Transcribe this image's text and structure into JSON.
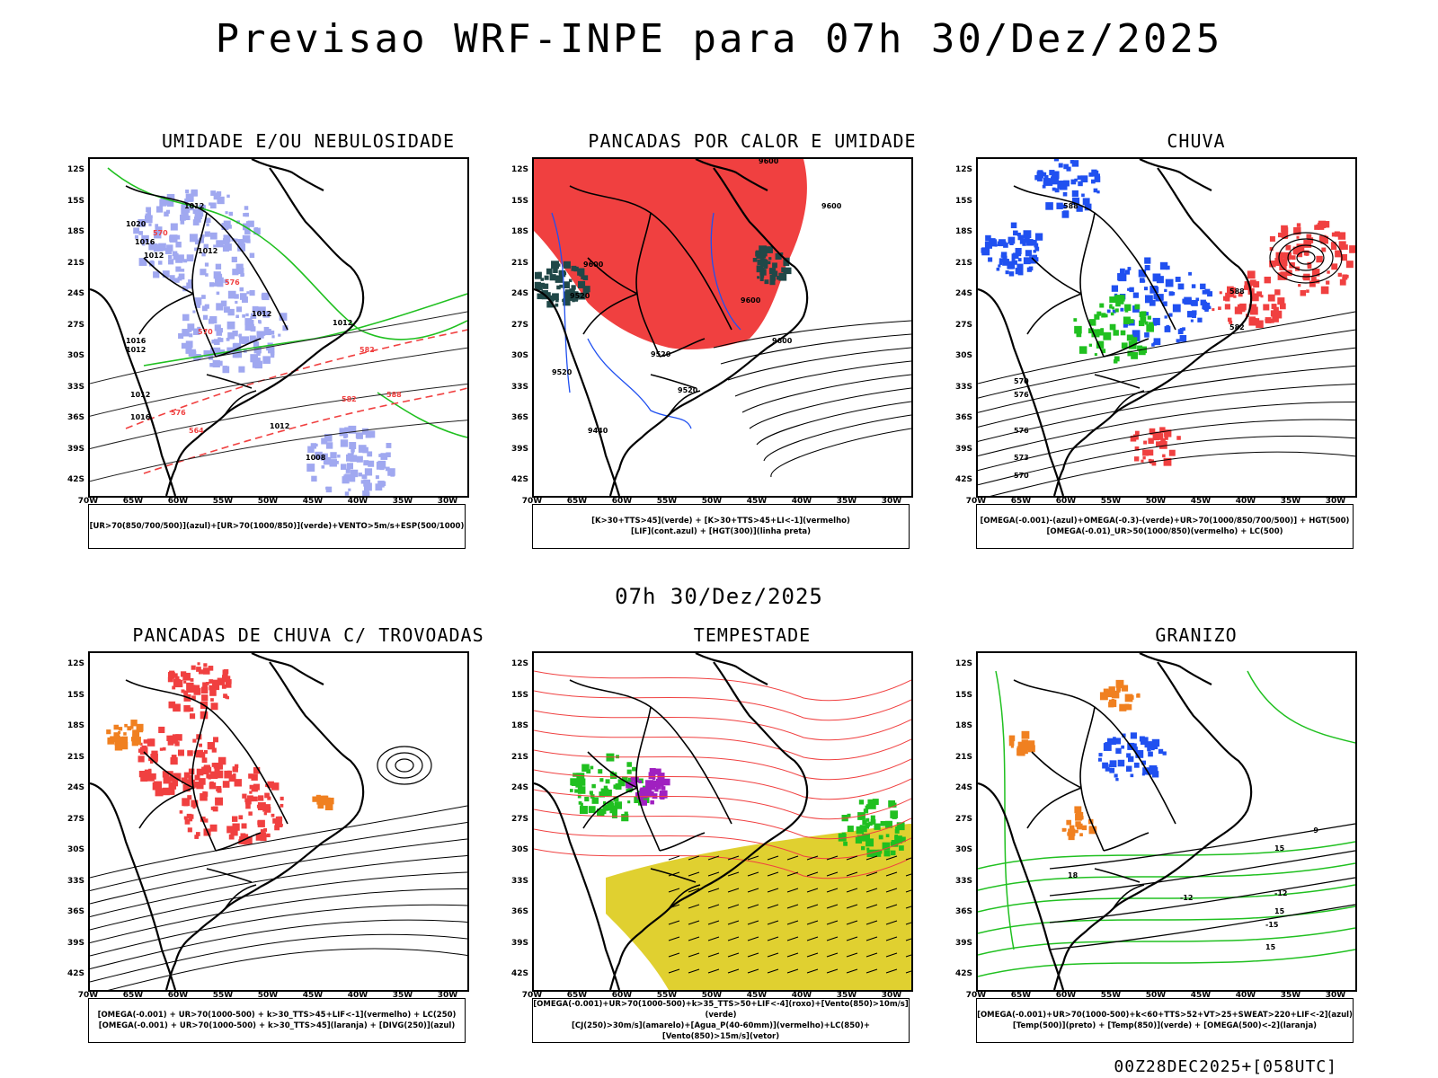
{
  "header": {
    "title": "Previsao WRF-INPE  para 07h 30/Dez/2025"
  },
  "mid": {
    "title": "07h 30/Dez/2025"
  },
  "footer": {
    "run": "00Z28DEC2025+[058UTC]"
  },
  "axes": {
    "lat_labels": [
      "12S",
      "15S",
      "18S",
      "21S",
      "24S",
      "27S",
      "30S",
      "33S",
      "36S",
      "39S",
      "42S"
    ],
    "lon_labels": [
      "70W",
      "65W",
      "60W",
      "55W",
      "50W",
      "45W",
      "40W",
      "35W",
      "30W"
    ]
  },
  "colors": {
    "red": "#f04040",
    "green": "#20c020",
    "blue": "#2050f0",
    "lightblue": "#a0a8f0",
    "yellow": "#e0d030",
    "orange": "#f08020",
    "purple": "#a020c0",
    "darkteal": "#204848"
  },
  "panels": [
    {
      "title": "UMIDADE E/OU NEBULOSIDADE",
      "legend": [
        "[UR>70(850/700/500)](azul)+[UR>70(1000/850)](verde)+VENTO>5m/s+ESP(500/1000)"
      ],
      "labels": [
        "1012",
        "1012",
        "1012",
        "1016",
        "1020",
        "1012",
        "1016",
        "1012",
        "1012",
        "1012",
        "1008",
        "1012",
        "1016",
        "570",
        "576",
        "564",
        "582",
        "576",
        "570",
        "582",
        "588"
      ]
    },
    {
      "title": "PANCADAS POR CALOR E UMIDADE",
      "legend": [
        "[K>30+TTS>45](verde) + [K>30+TTS>45+LI<-1](vermelho)",
        "[LIF](cont.azul) + [HGT(300)](linha preta)"
      ],
      "labels": [
        "9600",
        "9600",
        "9600",
        "9520",
        "9520",
        "9520",
        "9600",
        "9440",
        "9520",
        "9600"
      ]
    },
    {
      "title": "CHUVA",
      "legend": [
        "[OMEGA(-0.001)-(azul)+OMEGA(-0.3)-(verde)+UR>70(1000/850/700/500)] + HGT(500)",
        "[OMEGA(-0.01)_UR>50(1000/850)(vermelho) + LC(500)"
      ],
      "labels": [
        "588",
        "588",
        "582",
        "576",
        "576",
        "573",
        "570",
        "570"
      ]
    },
    {
      "title": "PANCADAS DE CHUVA C/ TROVOADAS",
      "legend": [
        "[OMEGA(-0.001) + UR>70(1000-500) + k>30_TTS>45+LIF<-1](vermelho) + LC(250)",
        "[OMEGA(-0.001) + UR>70(1000-500) + k>30_TTS>45](laranja) + [DIVG(250)](azul)"
      ],
      "labels": []
    },
    {
      "title": "TEMPESTADE",
      "legend": [
        "[OMEGA(-0.001)+UR>70(1000-500)+k>35_TTS>50+LIF<-4](roxo)+[Vento(850)>10m/s](verde)",
        "[CJ(250)>30m/s](amarelo)+[Agua_P(40-60mm)](vermelho)+LC(850)+[Vento(850)>15m/s](vetor)"
      ],
      "labels": []
    },
    {
      "title": "GRANIZO",
      "legend": [
        "[OMEGA(-0.001)+UR>70(1000-500)+k<60+TTS>52+VT>25+SWEAT>220+LIF<-2](azul)",
        "[Temp(500)](preto) + [Temp(850)](verde) + [OMEGA(500)<-2](laranja)"
      ],
      "labels": [
        "-9",
        "-12",
        "-12",
        "-15",
        "15",
        "15",
        "15",
        "18"
      ]
    }
  ]
}
